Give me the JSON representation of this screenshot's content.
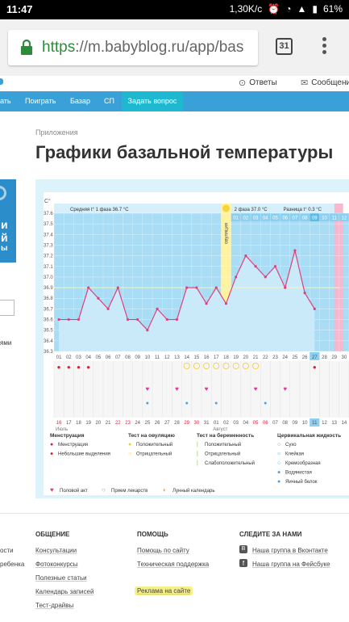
{
  "statusbar": {
    "time": "11:47",
    "speed": "1,30K/c",
    "battery": "61%"
  },
  "browser": {
    "url_scheme": "https",
    "url_rest": "://m.babyblog.ru/app/bas",
    "tab_count": "31"
  },
  "topnav": {
    "answers": "Ответы",
    "messages": "Сообщени"
  },
  "nav": {
    "items": [
      "ать",
      "Поиграть",
      "Базар",
      "СП"
    ],
    "ask": "Задать вопрос"
  },
  "breadcrumb": "Приложения",
  "page_title": "Графики базальной температуры",
  "left_panel": {
    "glyphs": [
      "и",
      "й",
      "ы"
    ],
    "text": "ями"
  },
  "chart_data": {
    "type": "line",
    "ylabel": "C°",
    "y_ticks": [
      "37.6",
      "37.5",
      "37.4",
      "37.3",
      "37.2",
      "37.1",
      "37.0",
      "36.9",
      "36.8",
      "36.7",
      "36.6",
      "36.5",
      "36.4",
      "36.3"
    ],
    "ylim": [
      36.3,
      37.6
    ],
    "days_top": [
      "01",
      "02",
      "03",
      "04",
      "05",
      "06",
      "07",
      "08",
      "09",
      "10",
      "11",
      "12",
      "13",
      "14",
      "15",
      "16",
      "17",
      "18",
      "19",
      "20",
      "21",
      "22",
      "23",
      "24",
      "25",
      "26",
      "27",
      "28",
      "29",
      "30"
    ],
    "values": [
      36.6,
      36.6,
      36.6,
      36.9,
      36.8,
      36.7,
      36.9,
      36.6,
      36.6,
      36.5,
      36.7,
      36.6,
      36.6,
      36.9,
      36.9,
      36.75,
      36.9,
      36.75,
      37.0,
      37.2,
      37.1,
      37.0,
      37.1,
      36.9,
      37.25,
      36.85,
      36.7
    ],
    "coverline": 36.9,
    "phase1_label": "Средняя t° 1 фаза",
    "phase1_value": "36.7 °C",
    "phase2_label": "2 фаза",
    "phase2_value": "37.0 °C",
    "diff_label": "Разница t°",
    "diff_value": "0.3 °C",
    "ovulation_label": "овуляция",
    "phase2_days": [
      "01",
      "02",
      "03",
      "04",
      "05",
      "06",
      "07",
      "08",
      "09",
      "10",
      "11",
      "12"
    ],
    "months": [
      "Июль",
      "Август"
    ],
    "dates_bottom": [
      "16",
      "17",
      "18",
      "19",
      "20",
      "21",
      "22",
      "23",
      "24",
      "25",
      "26",
      "27",
      "28",
      "29",
      "30",
      "31",
      "01",
      "02",
      "03",
      "04",
      "05",
      "06",
      "07",
      "08",
      "09",
      "10",
      "11",
      "12",
      "13",
      "14"
    ],
    "weekend_dates": [
      "16",
      "22",
      "23",
      "29",
      "30",
      "05",
      "06"
    ],
    "today": "27",
    "today_date": "11"
  },
  "legend": {
    "menstruation": {
      "title": "Менструация",
      "items": [
        "Менструация",
        "Небольшие выделения"
      ]
    },
    "ovulation_test": {
      "title": "Тест на овуляцию",
      "items": [
        "Положительный",
        "Отрицательный"
      ]
    },
    "pregnancy_test": {
      "title": "Тест на беременность",
      "items": [
        "Положительный",
        "Отрицательный",
        "Слабоположительный"
      ]
    },
    "cervical": {
      "title": "Цервикальная жидкость",
      "items": [
        "Сухо",
        "Клейкая",
        "Кремообразная",
        "Водянистая",
        "Яичный белок"
      ]
    },
    "other": [
      "Половой акт",
      "Прием лекарств",
      "Лунный календарь"
    ]
  },
  "footer": {
    "left_partial": [
      "ости",
      "ребенка"
    ],
    "col1": {
      "title": "ОБЩЕНИЕ",
      "links": [
        "Консультации",
        "Фотоконкурсы",
        "Полезные статьи",
        "Календарь записей",
        "Тест-драйвы"
      ]
    },
    "col2": {
      "title": "ПОМОЩЬ",
      "links": [
        "Помощь по сайту",
        "Техническая поддержка",
        "Реклама на сайте"
      ]
    },
    "col3": {
      "title": "СЛЕДИТЕ ЗА НАМИ",
      "links": [
        "Наша группа в Вконтакте",
        "Наша группа на Фейсбуке"
      ]
    }
  },
  "colors": {
    "blue_nav": "#3aa0d8",
    "chart_fill": "#bfe4f7",
    "phase2_band": "#8dcff0",
    "line": "#e0407a",
    "ovulation": "#fff3a0",
    "green_url": "#2e8b3c"
  }
}
